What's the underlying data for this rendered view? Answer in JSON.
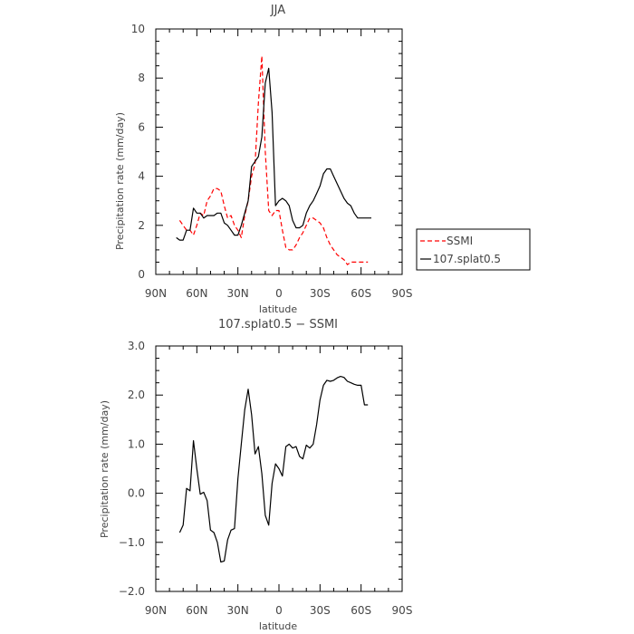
{
  "chart_data": [
    {
      "type": "line",
      "title": "JJA",
      "xlabel": "latitude",
      "ylabel": "Precipitation rate (mm/day)",
      "xticks": [
        "90N",
        "60N",
        "30N",
        "0",
        "30S",
        "60S",
        "90S"
      ],
      "xlim": [
        90,
        -90
      ],
      "ylim": [
        0,
        10
      ],
      "yticks": [
        "0",
        "2",
        "4",
        "6",
        "8",
        "10"
      ],
      "grid": false,
      "legend_position": "right",
      "series": [
        {
          "name": "SSMI",
          "color": "#ff0000",
          "dash": "dashed",
          "x": [
            72.5,
            70,
            67.5,
            65,
            62.5,
            60,
            57.5,
            55,
            52.5,
            50,
            47.5,
            45,
            42.5,
            40,
            37.5,
            35,
            32.5,
            30,
            27.5,
            25,
            22.5,
            20,
            17.5,
            15,
            12.5,
            10,
            7.5,
            5,
            2.5,
            0,
            -2.5,
            -5,
            -7.5,
            -10,
            -12.5,
            -15,
            -17.5,
            -20,
            -22.5,
            -25,
            -27.5,
            -30,
            -32.5,
            -35,
            -37.5,
            -40,
            -42.5,
            -45,
            -47.5,
            -50,
            -52.5,
            -55,
            -57.5,
            -60,
            -62.5,
            -65
          ],
          "y": [
            2.2,
            2.0,
            1.8,
            1.8,
            1.6,
            2.0,
            2.5,
            2.4,
            3.0,
            3.2,
            3.5,
            3.5,
            3.4,
            2.8,
            2.3,
            2.4,
            2.0,
            1.8,
            1.5,
            2.4,
            3.0,
            4.0,
            4.5,
            7.0,
            8.9,
            5.0,
            2.6,
            2.4,
            2.6,
            2.6,
            1.8,
            1.1,
            1.0,
            1.0,
            1.2,
            1.5,
            1.7,
            2.0,
            2.3,
            2.3,
            2.2,
            2.1,
            1.9,
            1.5,
            1.2,
            1.0,
            0.8,
            0.7,
            0.6,
            0.4,
            0.5,
            0.5,
            0.5,
            0.5,
            0.5,
            0.5
          ]
        },
        {
          "name": "107.splat0.5",
          "color": "#000000",
          "dash": "solid",
          "x": [
            75,
            72.5,
            70,
            67.5,
            65,
            62.5,
            60,
            57.5,
            55,
            52.5,
            50,
            47.5,
            45,
            42.5,
            40,
            37.5,
            35,
            32.5,
            30,
            27.5,
            25,
            22.5,
            20,
            17.5,
            15,
            12.5,
            10,
            7.5,
            5,
            2.5,
            0,
            -2.5,
            -5,
            -7.5,
            -10,
            -12.5,
            -15,
            -17.5,
            -20,
            -22.5,
            -25,
            -27.5,
            -30,
            -32.5,
            -35,
            -37.5,
            -40,
            -42.5,
            -45,
            -47.5,
            -50,
            -52.5,
            -55,
            -57.5,
            -60,
            -62.5,
            -65,
            -67.5
          ],
          "y": [
            1.5,
            1.4,
            1.4,
            1.8,
            1.8,
            2.7,
            2.5,
            2.5,
            2.3,
            2.4,
            2.4,
            2.4,
            2.5,
            2.5,
            2.1,
            2.0,
            1.8,
            1.6,
            1.6,
            2.0,
            2.5,
            3.0,
            4.4,
            4.6,
            4.8,
            5.6,
            7.8,
            8.4,
            6.6,
            2.8,
            3.0,
            3.1,
            3.0,
            2.8,
            2.2,
            1.9,
            1.9,
            2.0,
            2.5,
            2.8,
            3.0,
            3.3,
            3.6,
            4.1,
            4.3,
            4.3,
            4.0,
            3.7,
            3.4,
            3.1,
            2.9,
            2.8,
            2.5,
            2.3,
            2.3,
            2.3,
            2.3,
            2.3
          ]
        }
      ]
    },
    {
      "type": "line",
      "title": "107.splat0.5 − SSMI",
      "xlabel": "latitude",
      "ylabel": "Precipitation rate (mm/day)",
      "xticks": [
        "90N",
        "60N",
        "30N",
        "0",
        "30S",
        "60S",
        "90S"
      ],
      "xlim": [
        90,
        -90
      ],
      "ylim": [
        -2,
        3
      ],
      "yticks": [
        "−2.0",
        "−1.0",
        "0.0",
        "1.0",
        "2.0",
        "3.0"
      ],
      "grid": false,
      "series": [
        {
          "color": "#000000",
          "dash": "solid",
          "x": [
            72.5,
            70,
            67.5,
            65,
            62.5,
            60,
            57.5,
            55,
            52.5,
            50,
            47.5,
            45,
            42.5,
            40,
            37.5,
            35,
            32.5,
            30,
            27.5,
            25,
            22.5,
            20,
            17.5,
            15,
            12.5,
            10,
            7.5,
            5,
            2.5,
            0,
            -2.5,
            -5,
            -7.5,
            -10,
            -12.5,
            -15,
            -17.5,
            -20,
            -22.5,
            -25,
            -27.5,
            -30,
            -32.5,
            -35,
            -37.5,
            -40,
            -42.5,
            -45,
            -47.5,
            -50,
            -52.5,
            -55,
            -57.5,
            -60,
            -62.5,
            -65
          ],
          "y": [
            -0.8,
            -0.65,
            0.1,
            0.05,
            1.07,
            0.5,
            -0.02,
            0.02,
            -0.15,
            -0.75,
            -0.8,
            -1.0,
            -1.4,
            -1.38,
            -0.95,
            -0.75,
            -0.72,
            0.3,
            1.0,
            1.7,
            2.12,
            1.6,
            0.8,
            0.95,
            0.4,
            -0.45,
            -0.65,
            0.2,
            0.6,
            0.5,
            0.35,
            0.95,
            1.0,
            0.92,
            0.95,
            0.75,
            0.7,
            0.98,
            0.92,
            1.0,
            1.4,
            1.9,
            2.2,
            2.3,
            2.28,
            2.3,
            2.35,
            2.38,
            2.36,
            2.28,
            2.25,
            2.22,
            2.2,
            2.2,
            1.8,
            1.8
          ]
        }
      ]
    }
  ]
}
